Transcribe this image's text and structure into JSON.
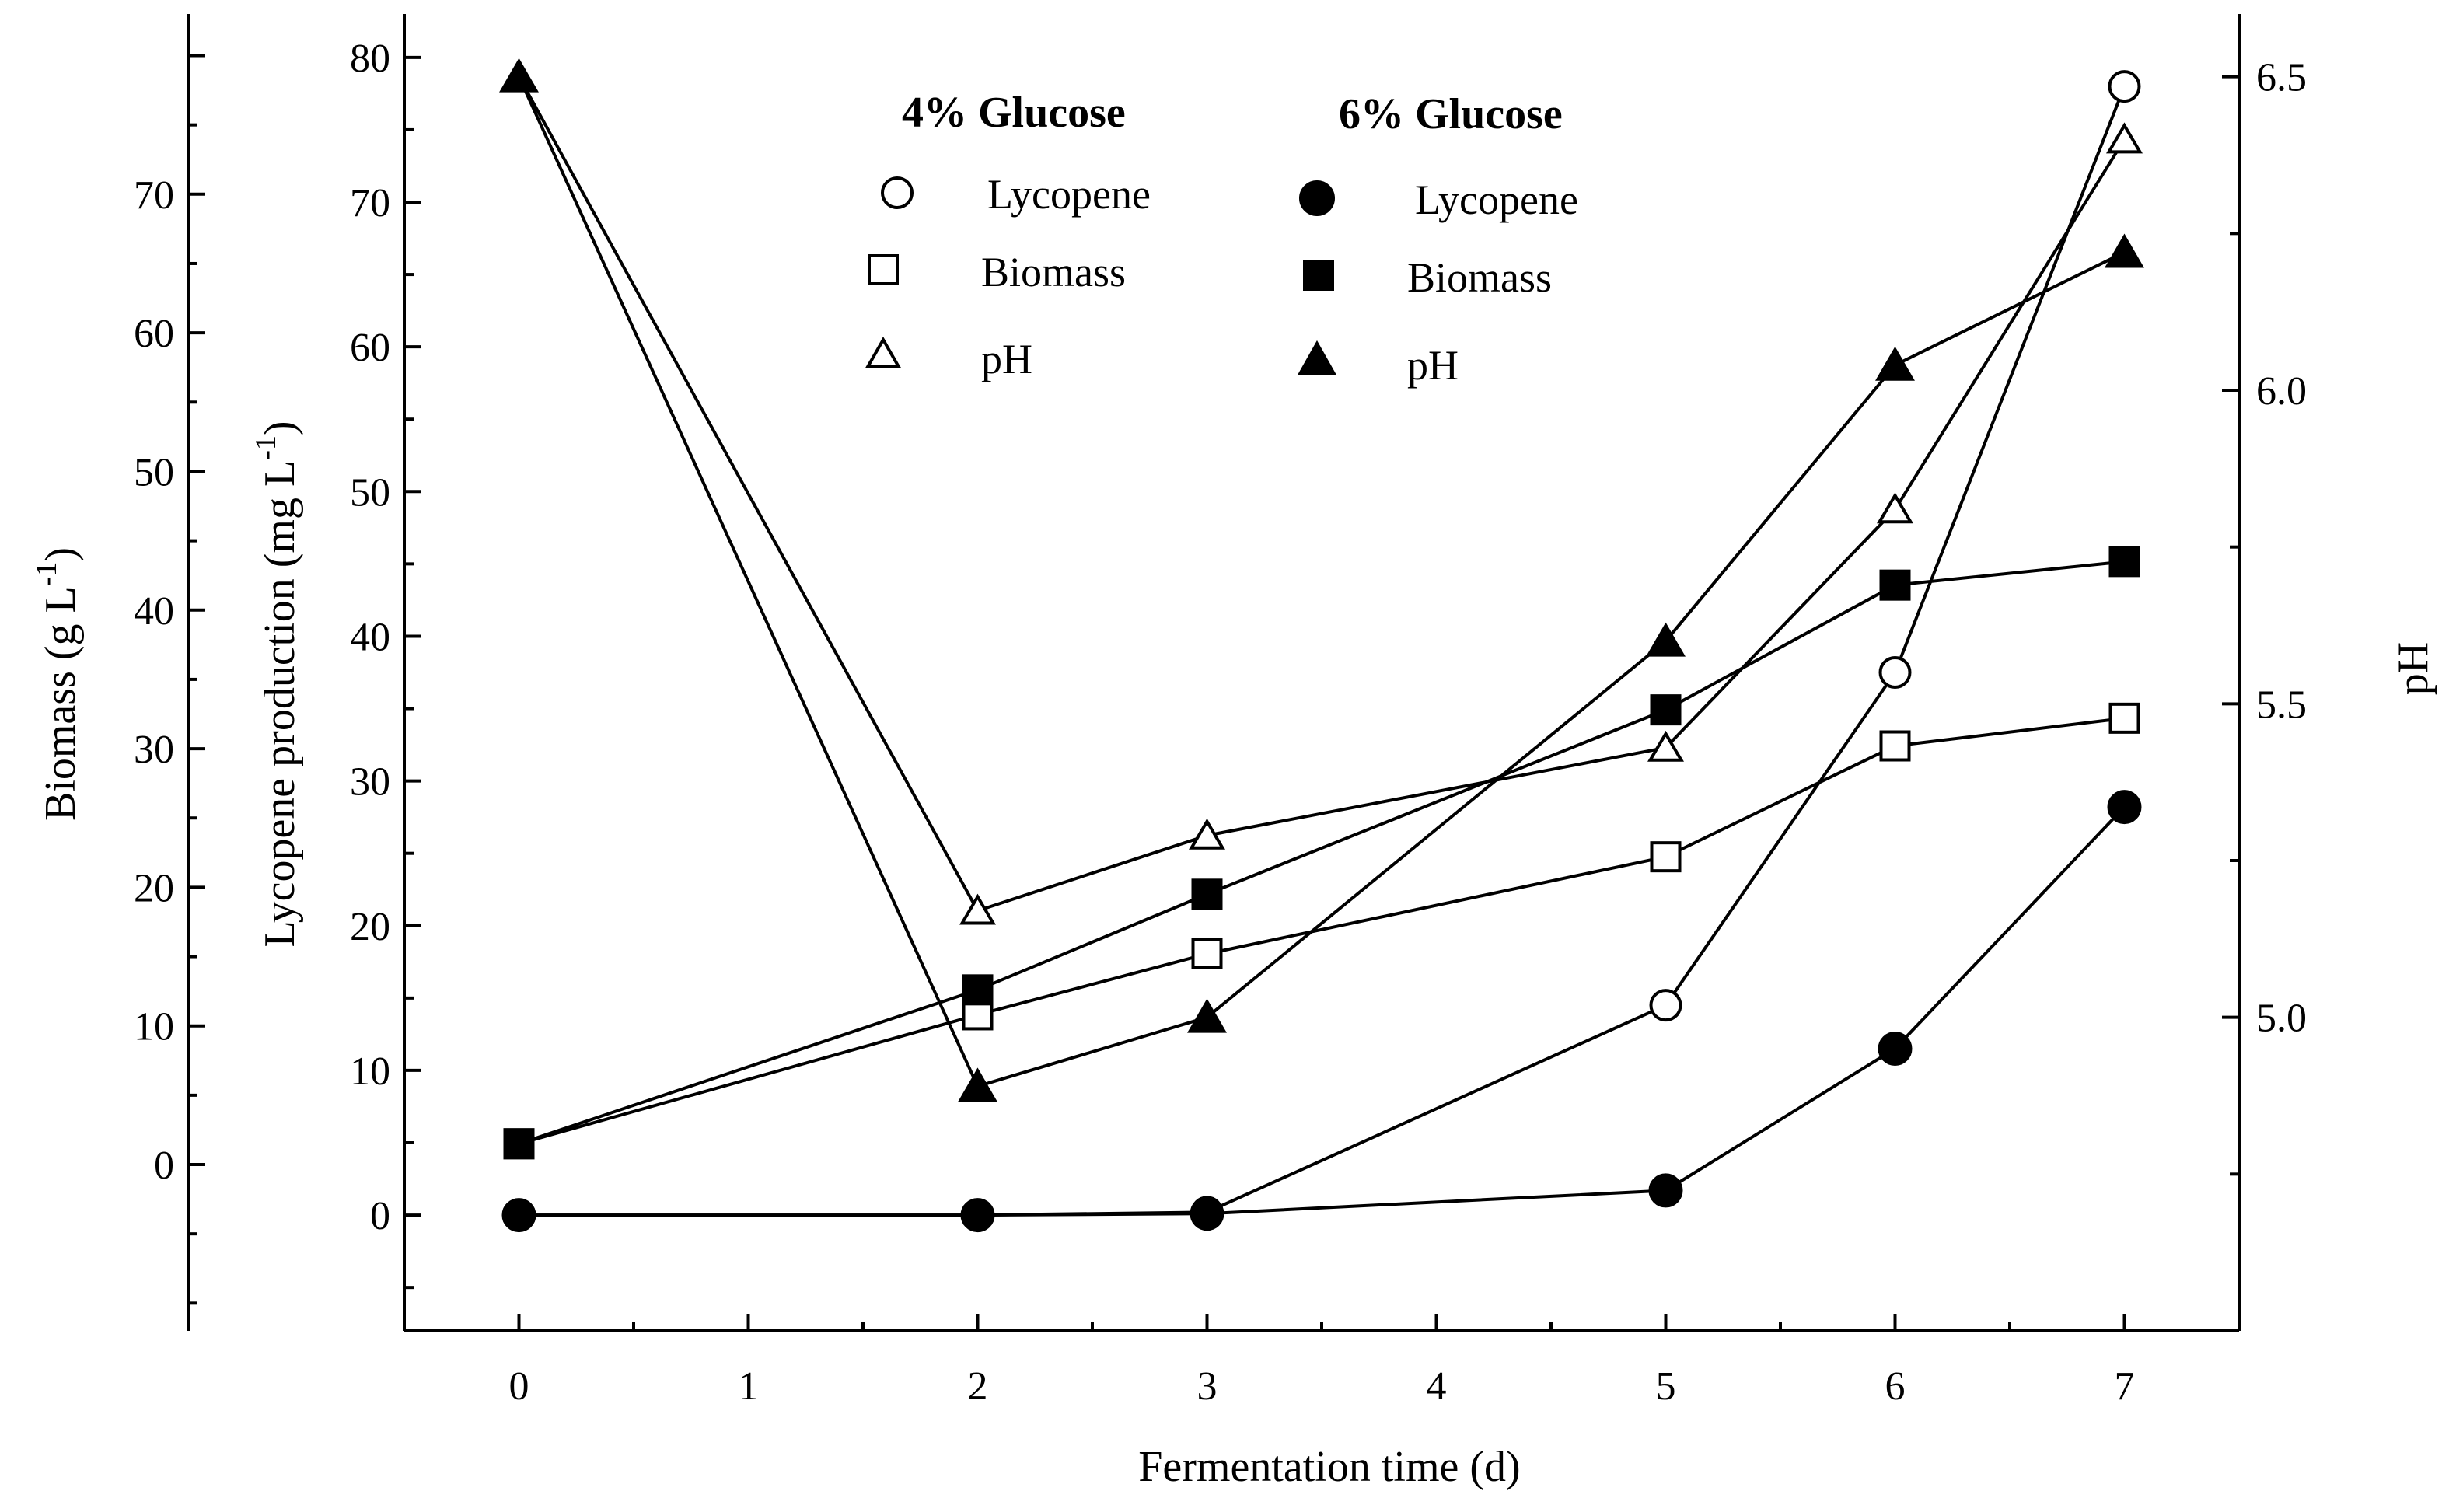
{
  "chart_data": {
    "type": "line",
    "xlabel": "Fermentation time (d)",
    "x_ticks": [
      0,
      1,
      2,
      3,
      4,
      5,
      6,
      7
    ],
    "xlim": [
      -0.5,
      7.5
    ],
    "axes": {
      "biomass": {
        "label": "Biomass (g L",
        "label_sup": "-1",
        "label_end": ")",
        "ticks": [
          0,
          10,
          20,
          30,
          40,
          50,
          60,
          70
        ],
        "ylim": [
          -12,
          83
        ]
      },
      "lycopene": {
        "label": "Lycopene production (mg L",
        "label_sup": "-1",
        "label_end": ")",
        "ticks": [
          0,
          10,
          20,
          30,
          40,
          50,
          60,
          70,
          80
        ],
        "ylim": [
          -8,
          83
        ]
      },
      "ph": {
        "label": "pH",
        "ticks": [
          "5.0",
          "5.5",
          "6.0",
          "6.5"
        ],
        "ylim": [
          4.5,
          6.6
        ]
      }
    },
    "x": [
      0,
      2,
      3,
      5,
      6,
      7
    ],
    "series": [
      {
        "name": "Lycopene",
        "group": "4% Glucose",
        "axis": "lycopene",
        "marker": "circle",
        "filled": false,
        "values": [
          0,
          0,
          0.2,
          14.5,
          37.5,
          78
        ]
      },
      {
        "name": "Biomass",
        "group": "4% Glucose",
        "axis": "biomass",
        "marker": "square",
        "filled": false,
        "values": [
          1.5,
          10.8,
          15.2,
          22.2,
          30.2,
          32.2
        ]
      },
      {
        "name": "pH",
        "group": "4% Glucose",
        "axis": "ph",
        "marker": "triangle",
        "filled": false,
        "values": [
          6.5,
          5.17,
          5.29,
          5.43,
          5.81,
          6.4
        ]
      },
      {
        "name": "Lycopene",
        "group": "6% Glucose",
        "axis": "lycopene",
        "marker": "circle",
        "filled": true,
        "values": [
          0,
          0,
          0.1,
          1.7,
          11.5,
          28.2
        ]
      },
      {
        "name": "Biomass",
        "group": "6% Glucose",
        "axis": "biomass",
        "marker": "square",
        "filled": true,
        "values": [
          1.5,
          12.6,
          19.5,
          32.8,
          41.8,
          43.5
        ]
      },
      {
        "name": "pH",
        "group": "6% Glucose",
        "axis": "ph",
        "marker": "triangle",
        "filled": true,
        "values": [
          6.5,
          4.89,
          5.0,
          5.6,
          6.04,
          6.22
        ]
      }
    ],
    "legend": {
      "groups": [
        "4% Glucose",
        "6% Glucose"
      ],
      "entries": [
        "Lycopene",
        "Biomass",
        "pH"
      ],
      "placement": "top-center"
    }
  }
}
